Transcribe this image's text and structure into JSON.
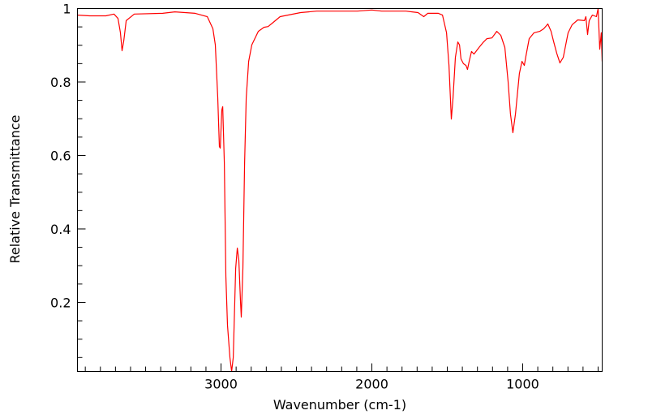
{
  "chart_data": {
    "type": "line",
    "title": "",
    "xlabel": "Wavenumber (cm-1)",
    "ylabel": "Relative Transmittance",
    "xlim": [
      3952,
      473
    ],
    "ylim": [
      0.012,
      1
    ],
    "x_ticks": [
      3000,
      2000,
      1000
    ],
    "x_tick_labels": [
      "3000",
      "2000",
      "1000"
    ],
    "y_ticks": [
      0.2,
      0.4,
      0.6,
      0.8,
      1
    ],
    "y_tick_labels": [
      "0.2",
      "0.4",
      "0.6",
      "0.8",
      "1"
    ],
    "grid": false,
    "line_color": "#ff0000",
    "series": [
      {
        "name": "spectrum",
        "x": [
          3952,
          3871,
          3763,
          3710,
          3683,
          3667,
          3656,
          3645,
          3629,
          3575,
          3387,
          3306,
          3172,
          3091,
          3054,
          3038,
          3022,
          3011,
          3005,
          2995,
          2989,
          2978,
          2968,
          2957,
          2941,
          2930,
          2919,
          2903,
          2892,
          2882,
          2871,
          2866,
          2855,
          2844,
          2833,
          2817,
          2796,
          2753,
          2715,
          2688,
          2661,
          2608,
          2473,
          2366,
          2204,
          2097,
          2000,
          1935,
          1774,
          1694,
          1656,
          1629,
          1559,
          1532,
          1505,
          1489,
          1473,
          1462,
          1446,
          1430,
          1419,
          1409,
          1393,
          1376,
          1366,
          1355,
          1339,
          1323,
          1290,
          1264,
          1237,
          1204,
          1172,
          1145,
          1118,
          1097,
          1081,
          1065,
          1048,
          1022,
          1005,
          989,
          978,
          957,
          925,
          887,
          860,
          833,
          812,
          796,
          774,
          753,
          731,
          699,
          672,
          635,
          591,
          581,
          570,
          559,
          538,
          511,
          500,
          489,
          479,
          473
        ],
        "y": [
          0.982,
          0.98,
          0.98,
          0.985,
          0.973,
          0.934,
          0.885,
          0.912,
          0.967,
          0.985,
          0.987,
          0.991,
          0.987,
          0.978,
          0.945,
          0.901,
          0.757,
          0.624,
          0.62,
          0.724,
          0.733,
          0.58,
          0.271,
          0.138,
          0.05,
          0.012,
          0.05,
          0.293,
          0.348,
          0.315,
          0.204,
          0.16,
          0.293,
          0.58,
          0.757,
          0.856,
          0.901,
          0.938,
          0.949,
          0.951,
          0.96,
          0.978,
          0.989,
          0.993,
          0.993,
          0.993,
          0.996,
          0.993,
          0.993,
          0.989,
          0.978,
          0.987,
          0.987,
          0.982,
          0.934,
          0.845,
          0.699,
          0.757,
          0.867,
          0.909,
          0.901,
          0.863,
          0.85,
          0.845,
          0.834,
          0.856,
          0.883,
          0.876,
          0.894,
          0.907,
          0.918,
          0.92,
          0.938,
          0.927,
          0.894,
          0.801,
          0.713,
          0.662,
          0.713,
          0.823,
          0.856,
          0.845,
          0.872,
          0.918,
          0.934,
          0.938,
          0.945,
          0.958,
          0.938,
          0.912,
          0.878,
          0.852,
          0.867,
          0.934,
          0.956,
          0.969,
          0.967,
          0.978,
          0.929,
          0.967,
          0.982,
          0.978,
          1.0,
          0.889,
          0.934,
          0.856
        ]
      }
    ]
  }
}
